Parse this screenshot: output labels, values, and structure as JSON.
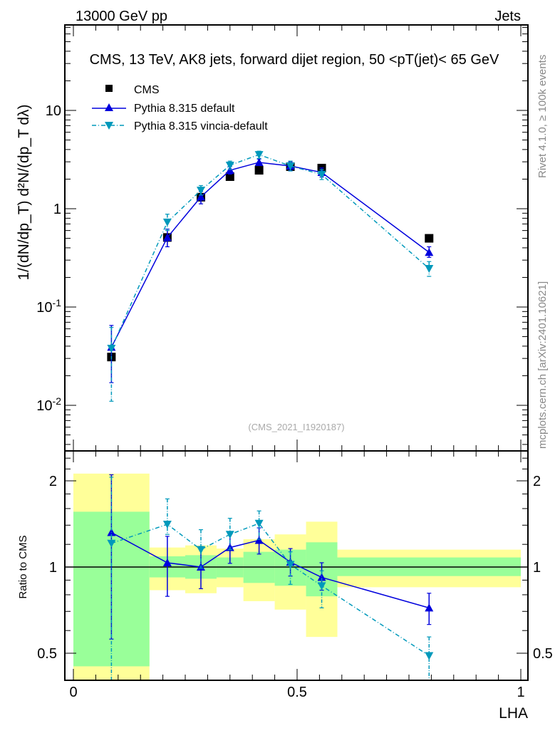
{
  "chart_data": [
    {
      "type": "scatter",
      "title": "CMS, 13 TeV, AK8 jets, forward dijet region, 50 <p_T^{jet}< 65 GeV",
      "top_left_label": "13000 GeV pp",
      "top_right_label": "Jets",
      "ylabel": "1/(dN/dp_T) d²N/(dp_T dλ)",
      "xlabel": "LHA",
      "yscale": "log",
      "ylim": [
        0.0035,
        74
      ],
      "xlim": [
        -0.02,
        1.015
      ],
      "ytick_labels": [
        "10^-2",
        "10^-1",
        "1",
        "10"
      ],
      "xtick_labels": [
        "0",
        "0.5",
        "1"
      ],
      "watermark": "(CMS_2021_I1920187)",
      "side_label_top": "Rivet 4.1.0, ≥ 100k events",
      "side_label_bottom": "mcplots.cern.ch [arXiv:2401.10621]",
      "legend_position": "top-left",
      "bin_edges": [
        0,
        0.17,
        0.25,
        0.32,
        0.38,
        0.45,
        0.52,
        0.59,
        1.0
      ],
      "x": [
        0.085,
        0.21,
        0.285,
        0.35,
        0.415,
        0.485,
        0.555,
        0.795
      ],
      "series": [
        {
          "name": "CMS",
          "color": "#000000",
          "marker": "square",
          "values": [
            0.031,
            0.51,
            1.31,
            2.12,
            2.46,
            2.68,
            2.59,
            0.5
          ]
        },
        {
          "name": "Pythia 8.315 default",
          "color": "#0000dd",
          "marker": "triangle-up",
          "line": "solid",
          "values": [
            0.039,
            0.51,
            1.32,
            2.46,
            2.96,
            2.72,
            2.34,
            0.36
          ],
          "err_low": [
            0.017,
            0.41,
            1.12,
            2.25,
            2.75,
            2.45,
            2.1,
            0.32
          ],
          "err_high": [
            0.065,
            0.62,
            1.5,
            2.7,
            3.2,
            3.0,
            2.6,
            0.41
          ]
        },
        {
          "name": "Pythia 8.315 vincia-default",
          "color": "#0099bb",
          "marker": "triangle-down",
          "line": "dashdot",
          "values": [
            0.038,
            0.73,
            1.54,
            2.77,
            3.55,
            2.72,
            2.23,
            0.246
          ],
          "err_low": [
            0.011,
            0.6,
            1.38,
            2.5,
            3.25,
            2.42,
            1.98,
            0.205
          ],
          "err_high": [
            0.062,
            0.88,
            1.72,
            3.05,
            3.85,
            3.05,
            2.5,
            0.29
          ]
        }
      ]
    },
    {
      "type": "scatter",
      "ylabel": "Ratio to CMS",
      "xlabel": "LHA",
      "yscale": "log",
      "ylim": [
        0.4,
        2.54
      ],
      "ytick_labels": [
        "0.5",
        "1",
        "2"
      ],
      "band_colors": {
        "stat": "#99ff99",
        "total": "#ffff99"
      },
      "bands": {
        "inner_low": [
          0.45,
          0.92,
          0.91,
          0.92,
          0.88,
          0.86,
          0.79,
          0.93
        ],
        "inner_high": [
          1.56,
          1.09,
          1.1,
          1.08,
          1.13,
          1.15,
          1.22,
          1.08
        ],
        "outer_low": [
          0.36,
          0.83,
          0.81,
          0.85,
          0.76,
          0.71,
          0.57,
          0.85
        ],
        "outer_high": [
          2.12,
          1.17,
          1.19,
          1.16,
          1.25,
          1.3,
          1.44,
          1.15
        ]
      },
      "series": [
        {
          "name": "Pythia 8.315 default",
          "color": "#0000dd",
          "values": [
            1.32,
            1.035,
            1.0,
            1.17,
            1.24,
            1.04,
            0.92,
            0.72
          ],
          "err_low": [
            0.56,
            0.79,
            0.84,
            1.03,
            1.11,
            0.93,
            0.83,
            0.63
          ],
          "err_high": [
            2.1,
            1.28,
            1.18,
            1.32,
            1.37,
            1.16,
            1.035,
            0.81
          ]
        },
        {
          "name": "Pythia 8.315 vincia-default",
          "color": "#0099bb",
          "values": [
            1.21,
            1.41,
            1.15,
            1.3,
            1.42,
            1.02,
            0.86,
            0.49
          ],
          "err_low": [
            0.3,
            1.3,
            0.99,
            1.15,
            1.25,
            0.87,
            0.72,
            0.3
          ],
          "err_high": [
            2.06,
            1.73,
            1.35,
            1.48,
            1.57,
            1.13,
            0.97,
            0.57
          ]
        }
      ]
    }
  ]
}
